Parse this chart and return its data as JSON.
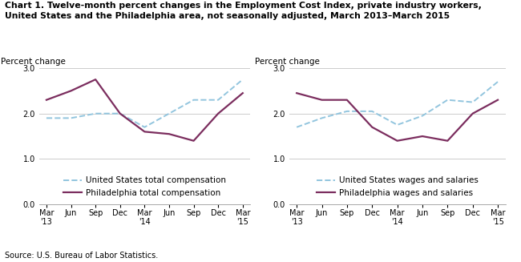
{
  "title_line1": "Chart 1. Twelve-month percent changes in the Employment Cost Index, private industry workers,",
  "title_line2": "United States and the Philadelphia area, not seasonally adjusted, March 2013–March 2015",
  "source": "Source: U.S. Bureau of Labor Statistics.",
  "ylabel": "Percent change",
  "x_labels": [
    "Mar\n'13",
    "Jun",
    "Sep",
    "Dec",
    "Mar\n'14",
    "Jun",
    "Sep",
    "Dec",
    "Mar\n'15"
  ],
  "ylim": [
    0.0,
    3.0
  ],
  "yticks": [
    0.0,
    1.0,
    2.0,
    3.0
  ],
  "left": {
    "us_total": [
      1.9,
      1.9,
      2.0,
      2.0,
      1.7,
      2.0,
      2.3,
      2.3,
      2.75
    ],
    "philly_total": [
      2.3,
      2.5,
      2.75,
      2.0,
      1.6,
      1.55,
      1.4,
      2.0,
      2.45
    ],
    "legend1": "United States total compensation",
    "legend2": "Philadelphia total compensation"
  },
  "right": {
    "us_wages": [
      1.7,
      1.9,
      2.05,
      2.05,
      1.75,
      1.95,
      2.3,
      2.25,
      2.7
    ],
    "philly_wages": [
      2.45,
      2.3,
      2.3,
      1.7,
      1.4,
      1.5,
      1.4,
      2.0,
      2.3
    ],
    "legend1": "United States wages and salaries",
    "legend2": "Philadelphia wages and salaries"
  },
  "us_color": "#92C5DE",
  "philly_color": "#7B2D5E",
  "us_linewidth": 1.4,
  "philly_linewidth": 1.6,
  "title_fontsize": 7.8,
  "axis_label_fontsize": 7.5,
  "tick_fontsize": 7.0,
  "legend_fontsize": 7.5,
  "source_fontsize": 7.0
}
